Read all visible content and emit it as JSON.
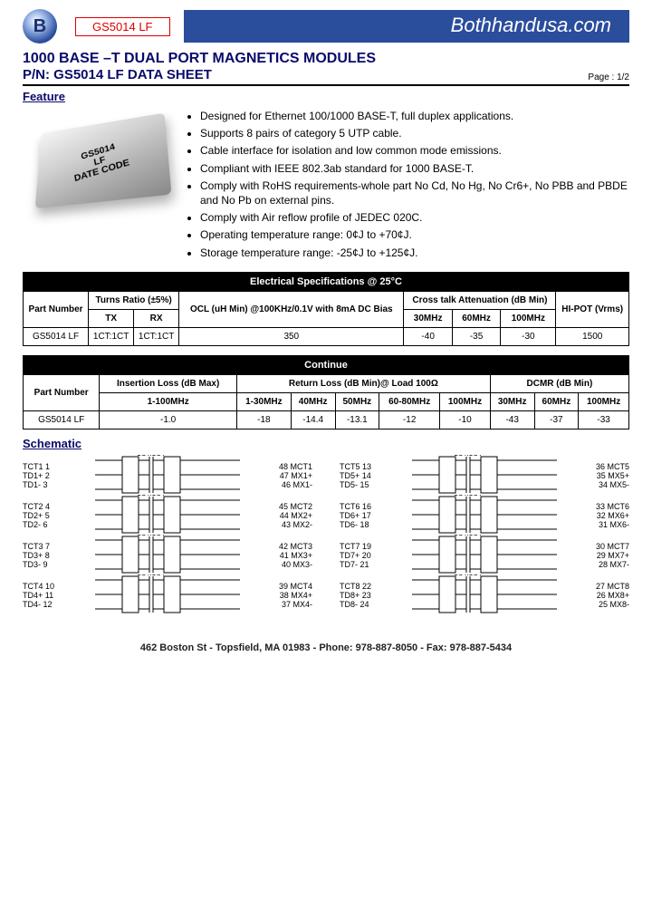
{
  "header": {
    "part_box": "GS5014 LF",
    "brand": "Bothhandusa.com",
    "title": "1000 BASE –T DUAL PORT MAGNETICS MODULES",
    "subtitle": "P/N: GS5014 LF DATA SHEET",
    "page": "Page : 1/2"
  },
  "sections": {
    "feature": "Feature",
    "schematic": "Schematic"
  },
  "chip_label": "GS5014\nLF\nDATE CODE",
  "features": [
    "Designed for Ethernet 100/1000 BASE-T, full duplex applications.",
    "Supports 8 pairs of category 5 UTP cable.",
    "Cable interface for isolation and low common mode emissions.",
    "Compliant with IEEE 802.3ab standard for 1000 BASE-T.",
    "Comply with RoHS requirements-whole part No Cd, No Hg, No Cr6+, No PBB and PBDE and No Pb on external pins.",
    "Comply with Air reflow profile of JEDEC 020C.",
    "Operating temperature range: 0¢J  to +70¢J.",
    "Storage temperature range: -25¢J to +125¢J."
  ],
  "table1": {
    "title": "Electrical Specifications @ 25°C",
    "headers": {
      "pn": "Part Number",
      "turns": "Turns Ratio (±5%)",
      "tx": "TX",
      "rx": "RX",
      "ocl": "OCL (uH Min) @100KHz/0.1V with 8mA DC Bias",
      "xtalk": "Cross talk Attenuation (dB Min)",
      "c30": "30MHz",
      "c60": "60MHz",
      "c100": "100MHz",
      "hipot": "HI-POT (Vrms)"
    },
    "row": {
      "pn": "GS5014 LF",
      "tx": "1CT:1CT",
      "rx": "1CT:1CT",
      "ocl": "350",
      "c30": "-40",
      "c60": "-35",
      "c100": "-30",
      "hipot": "1500"
    }
  },
  "table2": {
    "title": "Continue",
    "headers": {
      "pn": "Part Number",
      "il": "Insertion Loss (dB Max)",
      "il_range": "1-100MHz",
      "rl": "Return Loss (dB Min)@ Load 100Ω",
      "rl1": "1-30MHz",
      "rl2": "40MHz",
      "rl3": "50MHz",
      "rl4": "60-80MHz",
      "rl5": "100MHz",
      "dcmr": "DCMR (dB Min)",
      "d1": "30MHz",
      "d2": "60MHz",
      "d3": "100MHz"
    },
    "row": {
      "pn": "GS5014 LF",
      "il": "-1.0",
      "rl1": "-18",
      "rl2": "-14.4",
      "rl3": "-13.1",
      "rl4": "-12",
      "rl5": "-10",
      "d1": "-43",
      "d2": "-37",
      "d3": "-33"
    }
  },
  "schematic": {
    "ratio": "1CT:1CT",
    "left_col": [
      {
        "tl": "TCT1 1",
        "ml": "TD1+ 2",
        "bl": "TD1- 3",
        "tr": "48 MCT1",
        "mr": "47 MX1+",
        "br": "46 MX1-"
      },
      {
        "tl": "TCT2 4",
        "ml": "TD2+ 5",
        "bl": "TD2- 6",
        "tr": "45 MCT2",
        "mr": "44 MX2+",
        "br": "43 MX2-"
      },
      {
        "tl": "TCT3 7",
        "ml": "TD3+ 8",
        "bl": "TD3- 9",
        "tr": "42 MCT3",
        "mr": "41 MX3+",
        "br": "40 MX3-"
      },
      {
        "tl": "TCT4 10",
        "ml": "TD4+ 11",
        "bl": "TD4- 12",
        "tr": "39 MCT4",
        "mr": "38 MX4+",
        "br": "37 MX4-"
      }
    ],
    "right_col": [
      {
        "tl": "TCT5 13",
        "ml": "TD5+ 14",
        "bl": "TD5- 15",
        "tr": "36 MCT5",
        "mr": "35 MX5+",
        "br": "34 MX5-"
      },
      {
        "tl": "TCT6 16",
        "ml": "TD6+ 17",
        "bl": "TD6- 18",
        "tr": "33 MCT6",
        "mr": "32 MX6+",
        "br": "31 MX6-"
      },
      {
        "tl": "TCT7 19",
        "ml": "TD7+ 20",
        "bl": "TD7- 21",
        "tr": "30 MCT7",
        "mr": "29 MX7+",
        "br": "28 MX7-"
      },
      {
        "tl": "TCT8 22",
        "ml": "TD8+ 23",
        "bl": "TD8- 24",
        "tr": "27 MCT8",
        "mr": "26 MX8+",
        "br": "25 MX8-"
      }
    ]
  },
  "footer": "462 Boston St - Topsfield, MA 01983 - Phone: 978-887-8050 - Fax: 978-887-5434",
  "colors": {
    "title": "#0a0a6b",
    "brand_bg": "#2a4d9c",
    "red": "#d00000"
  }
}
